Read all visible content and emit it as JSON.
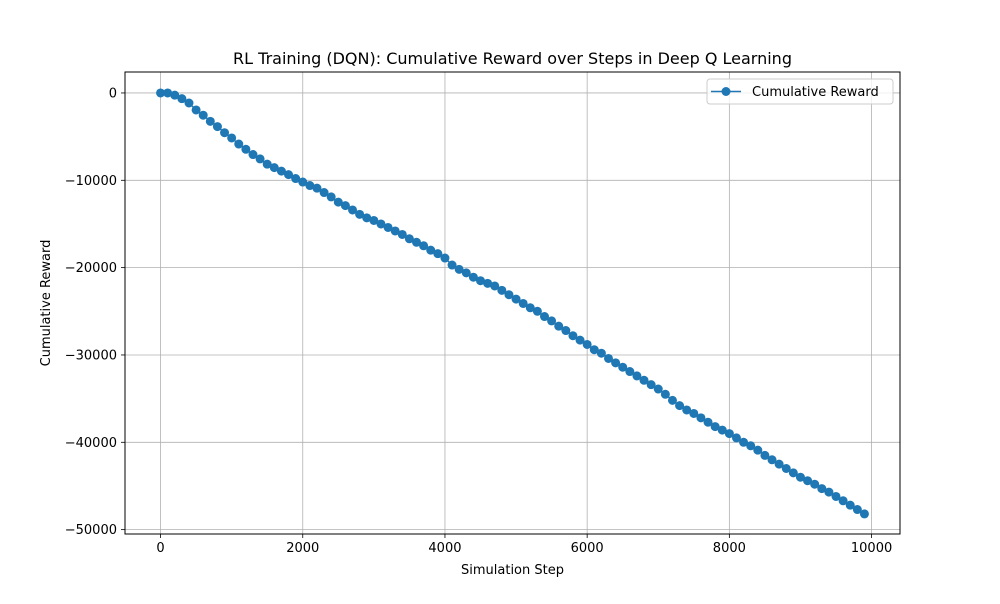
{
  "chart_data": {
    "type": "line",
    "title": "RL Training (DQN): Cumulative Reward over Steps in Deep Q Learning",
    "xlabel": "Simulation Step",
    "ylabel": "Cumulative Reward",
    "xlim": [
      -500,
      10400
    ],
    "ylim": [
      -50500,
      2400
    ],
    "xticks": [
      0,
      2000,
      4000,
      6000,
      8000,
      10000
    ],
    "xtick_labels": [
      "0",
      "2000",
      "4000",
      "6000",
      "8000",
      "10000"
    ],
    "yticks": [
      0,
      -10000,
      -20000,
      -30000,
      -40000,
      -50000
    ],
    "ytick_labels": [
      "0",
      "−10000",
      "−20000",
      "−30000",
      "−40000",
      "−50000"
    ],
    "grid": true,
    "legend_position": "top-right",
    "series": [
      {
        "name": "Cumulative Reward",
        "color": "#1f77b4",
        "marker": "circle",
        "x": [
          0,
          100,
          200,
          300,
          400,
          500,
          600,
          700,
          800,
          900,
          1000,
          1100,
          1200,
          1300,
          1400,
          1500,
          1600,
          1700,
          1800,
          1900,
          2000,
          2100,
          2200,
          2300,
          2400,
          2500,
          2600,
          2700,
          2800,
          2900,
          3000,
          3100,
          3200,
          3300,
          3400,
          3500,
          3600,
          3700,
          3800,
          3900,
          4000,
          4100,
          4200,
          4300,
          4400,
          4500,
          4600,
          4700,
          4800,
          4900,
          5000,
          5100,
          5200,
          5300,
          5400,
          5500,
          5600,
          5700,
          5800,
          5900,
          6000,
          6100,
          6200,
          6300,
          6400,
          6500,
          6600,
          6700,
          6800,
          6900,
          7000,
          7100,
          7200,
          7300,
          7400,
          7500,
          7600,
          7700,
          7800,
          7900,
          8000,
          8100,
          8200,
          8300,
          8400,
          8500,
          8600,
          8700,
          8800,
          8900,
          9000,
          9100,
          9200,
          9300,
          9400,
          9500,
          9600,
          9700,
          9800,
          9900
        ],
        "y": [
          0,
          0,
          -250,
          -650,
          -1150,
          -1950,
          -2550,
          -3250,
          -3850,
          -4550,
          -5150,
          -5850,
          -6450,
          -7050,
          -7550,
          -8150,
          -8550,
          -8950,
          -9350,
          -9800,
          -10200,
          -10600,
          -10900,
          -11400,
          -11900,
          -12500,
          -12900,
          -13400,
          -13900,
          -14300,
          -14600,
          -15000,
          -15400,
          -15800,
          -16200,
          -16700,
          -17100,
          -17500,
          -18000,
          -18400,
          -18900,
          -19700,
          -20200,
          -20600,
          -21100,
          -21500,
          -21800,
          -22100,
          -22600,
          -23100,
          -23600,
          -24100,
          -24600,
          -25000,
          -25600,
          -26100,
          -26700,
          -27200,
          -27800,
          -28300,
          -28800,
          -29400,
          -29800,
          -30400,
          -30900,
          -31400,
          -31900,
          -32400,
          -32900,
          -33400,
          -33900,
          -34500,
          -35200,
          -35800,
          -36300,
          -36700,
          -37200,
          -37700,
          -38200,
          -38600,
          -39000,
          -39500,
          -40000,
          -40400,
          -40900,
          -41500,
          -42000,
          -42500,
          -43000,
          -43500,
          -44000,
          -44400,
          -44800,
          -45300,
          -45700,
          -46200,
          -46700,
          -47200,
          -47700,
          -48200
        ]
      }
    ]
  }
}
